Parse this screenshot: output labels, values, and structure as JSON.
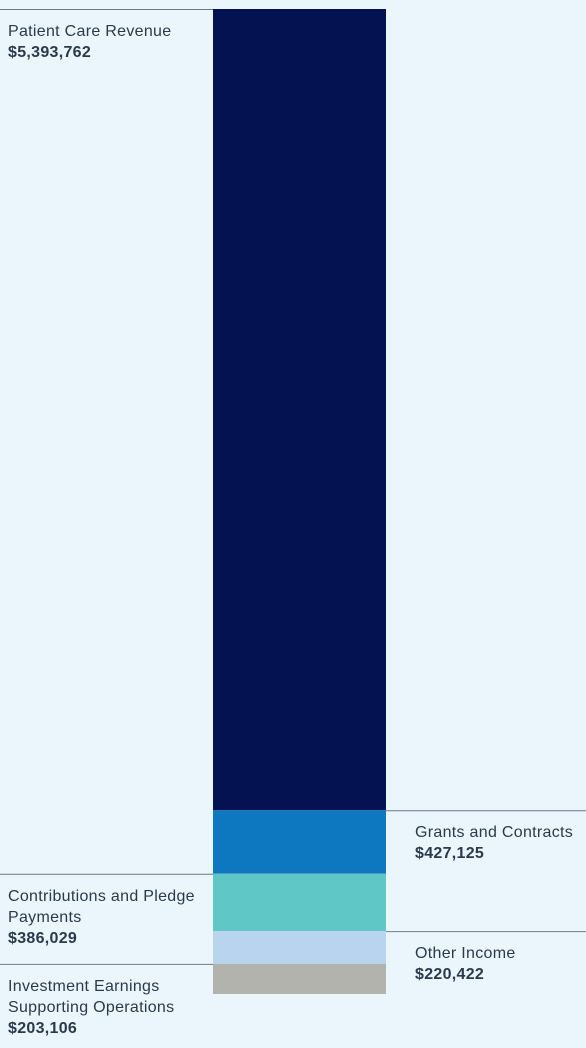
{
  "chart_data": {
    "type": "bar",
    "stacked": true,
    "categories": [
      ""
    ],
    "series": [
      {
        "name": "Patient Care Revenue",
        "value_label": "$5,393,762",
        "values": [
          5393762
        ],
        "color": "#051252",
        "label_side": "left"
      },
      {
        "name": "Grants and Contracts",
        "value_label": "$427,125",
        "values": [
          427125
        ],
        "color": "#0d78bf",
        "label_side": "right"
      },
      {
        "name": "Contributions and Pledge Payments",
        "value_label": "$386,029",
        "values": [
          386029
        ],
        "color": "#5fc7c6",
        "label_side": "left"
      },
      {
        "name": "Other Income",
        "value_label": "$220,422",
        "values": [
          220422
        ],
        "color": "#b8d4ee",
        "label_side": "right"
      },
      {
        "name": "Investment Earnings Supporting Operations",
        "value_label": "$203,106",
        "values": [
          203106
        ],
        "color": "#b3b3ad",
        "label_side": "left"
      }
    ],
    "legend": "none",
    "grid": false
  }
}
